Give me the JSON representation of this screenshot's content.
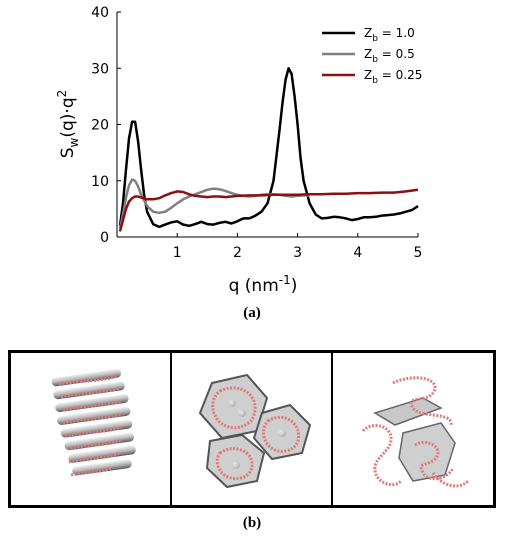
{
  "chart_data": {
    "type": "line",
    "xlabel": "q (nm",
    "xlabel_sup": "-1",
    "xlabel_close": ")",
    "ylabel_main": "S",
    "ylabel_sub": "w",
    "ylabel_rest": "(q)·q",
    "ylabel_sup": "2",
    "xlim": [
      0,
      5
    ],
    "ylim": [
      0,
      40
    ],
    "xticks": [
      1,
      2,
      3,
      4,
      5
    ],
    "yticks": [
      0,
      10,
      20,
      30,
      40
    ],
    "grid": false,
    "legend_position": "top-right",
    "series": [
      {
        "name_main": "Z",
        "name_sub": "b",
        "name_rest": " = 1.0",
        "color": "#000000",
        "x": [
          0.05,
          0.1,
          0.15,
          0.2,
          0.25,
          0.3,
          0.35,
          0.4,
          0.45,
          0.5,
          0.6,
          0.7,
          0.8,
          0.9,
          1.0,
          1.1,
          1.2,
          1.3,
          1.4,
          1.5,
          1.6,
          1.7,
          1.8,
          1.9,
          2.0,
          2.1,
          2.2,
          2.3,
          2.4,
          2.5,
          2.6,
          2.7,
          2.75,
          2.8,
          2.85,
          2.9,
          2.95,
          3.0,
          3.05,
          3.1,
          3.2,
          3.3,
          3.4,
          3.5,
          3.6,
          3.7,
          3.8,
          3.9,
          4.0,
          4.1,
          4.2,
          4.3,
          4.4,
          4.5,
          4.6,
          4.7,
          4.8,
          4.9,
          5.0
        ],
        "y": [
          2,
          6,
          12,
          17.5,
          20.5,
          20.5,
          17,
          12,
          7.5,
          4.5,
          2.3,
          1.8,
          2.2,
          2.6,
          2.8,
          2.2,
          2.0,
          2.3,
          2.7,
          2.3,
          2.2,
          2.5,
          2.7,
          2.4,
          2.8,
          3.3,
          3.3,
          3.8,
          4.5,
          6.0,
          10,
          19,
          24,
          28,
          30,
          29,
          25,
          20,
          14,
          10,
          6.0,
          4.0,
          3.3,
          3.4,
          3.6,
          3.5,
          3.3,
          3.0,
          3.2,
          3.5,
          3.5,
          3.6,
          3.8,
          3.9,
          4.0,
          4.2,
          4.5,
          4.8,
          5.5
        ]
      },
      {
        "name_main": "Z",
        "name_sub": "b",
        "name_rest": " = 0.5",
        "color": "#808080",
        "x": [
          0.05,
          0.1,
          0.15,
          0.2,
          0.25,
          0.3,
          0.35,
          0.4,
          0.5,
          0.6,
          0.7,
          0.8,
          0.9,
          1.0,
          1.1,
          1.2,
          1.3,
          1.4,
          1.5,
          1.6,
          1.7,
          1.8,
          1.9,
          2.0,
          2.1,
          2.2,
          2.3,
          2.4,
          2.5,
          2.6,
          2.7,
          2.8,
          2.9,
          3.0,
          3.1,
          3.2
        ],
        "y": [
          1.5,
          4,
          7,
          9.2,
          10.2,
          10,
          9,
          7.5,
          5.5,
          4.5,
          4.3,
          4.5,
          5.2,
          6.0,
          6.7,
          7.2,
          7.6,
          8.0,
          8.4,
          8.6,
          8.5,
          8.2,
          7.8,
          7.5,
          7.3,
          7.2,
          7.3,
          7.5,
          7.6,
          7.6,
          7.5,
          7.3,
          7.2,
          7.3,
          7.4,
          7.4
        ]
      },
      {
        "name_main": "Z",
        "name_sub": "b",
        "name_rest": " = 0.25",
        "color": "#8b1010",
        "x": [
          0.05,
          0.1,
          0.15,
          0.2,
          0.25,
          0.3,
          0.35,
          0.4,
          0.5,
          0.6,
          0.7,
          0.8,
          0.9,
          1.0,
          1.1,
          1.2,
          1.3,
          1.4,
          1.5,
          1.6,
          1.7,
          1.8,
          1.9,
          2.0,
          2.2,
          2.4,
          2.6,
          2.8,
          3.0,
          3.2,
          3.4,
          3.6,
          3.8,
          4.0,
          4.2,
          4.4,
          4.6,
          4.8,
          5.0
        ],
        "y": [
          1,
          3,
          5,
          6.3,
          6.9,
          7.2,
          7.2,
          7.0,
          6.7,
          6.7,
          6.9,
          7.4,
          7.8,
          8.1,
          8.0,
          7.6,
          7.3,
          7.2,
          7.1,
          7.2,
          7.2,
          7.1,
          7.2,
          7.3,
          7.4,
          7.4,
          7.5,
          7.5,
          7.5,
          7.6,
          7.6,
          7.7,
          7.7,
          7.8,
          7.8,
          7.9,
          7.9,
          8.1,
          8.4
        ]
      }
    ]
  },
  "captions": {
    "a": "(a)",
    "b": "(b)"
  },
  "panels": [
    {
      "label": "lamellar-structure-image"
    },
    {
      "label": "hexagonal-structure-image"
    },
    {
      "label": "disordered-structure-image"
    }
  ]
}
